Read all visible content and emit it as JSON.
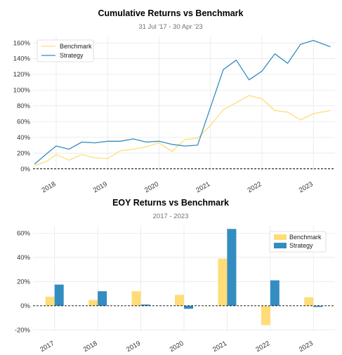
{
  "colors": {
    "benchmark": "#fedd78",
    "strategy": "#348dc1",
    "grid": "#e8e8e8",
    "zero_line": "#000000"
  },
  "chart_data": [
    {
      "type": "line",
      "title": "Cumulative Returns vs Benchmark",
      "subtitle": "31 Jul '17 - 30 Apr '23",
      "xlabel": "",
      "ylabel": "",
      "x_ticks": [
        "2018",
        "2019",
        "2020",
        "2021",
        "2022",
        "2023"
      ],
      "y_ticks": [
        "0%",
        "20%",
        "40%",
        "60%",
        "80%",
        "100%",
        "120%",
        "140%",
        "160%"
      ],
      "ylim": [
        -3,
        168
      ],
      "xlim": [
        2017.55,
        2023.42
      ],
      "grid": true,
      "legend": "top-left",
      "series": [
        {
          "name": "Benchmark",
          "x": [
            2017.58,
            2017.83,
            2018.0,
            2018.25,
            2018.5,
            2018.75,
            2019.0,
            2019.25,
            2019.5,
            2019.75,
            2020.0,
            2020.25,
            2020.5,
            2020.75,
            2021.0,
            2021.25,
            2021.5,
            2021.75,
            2022.0,
            2022.25,
            2022.5,
            2022.75,
            2023.0,
            2023.33
          ],
          "y": [
            4,
            10,
            18,
            11,
            18,
            14,
            13,
            23,
            25,
            28,
            33,
            22,
            37,
            39,
            55,
            75,
            84,
            93,
            89,
            74,
            72,
            62,
            70,
            74
          ]
        },
        {
          "name": "Strategy",
          "x": [
            2017.58,
            2017.83,
            2018.0,
            2018.25,
            2018.5,
            2018.75,
            2019.0,
            2019.25,
            2019.5,
            2019.75,
            2020.0,
            2020.25,
            2020.5,
            2020.75,
            2021.0,
            2021.25,
            2021.5,
            2021.75,
            2022.0,
            2022.25,
            2022.5,
            2022.75,
            2023.0,
            2023.33
          ],
          "y": [
            6,
            20,
            29,
            25,
            34,
            33,
            35,
            35,
            38,
            34,
            35,
            31,
            29,
            30,
            78,
            126,
            138,
            113,
            124,
            146,
            134,
            158,
            163,
            155
          ]
        }
      ]
    },
    {
      "type": "bar",
      "title": "EOY Returns  vs Benchmark",
      "subtitle": "2017 - 2023",
      "xlabel": "",
      "ylabel": "",
      "categories": [
        "2017",
        "2018",
        "2019",
        "2020",
        "2021",
        "2022",
        "2023"
      ],
      "y_ticks": [
        "-20%",
        "0%",
        "20%",
        "40%",
        "60%"
      ],
      "ylim": [
        -21,
        66
      ],
      "grid": true,
      "legend": "top-right",
      "series": [
        {
          "name": "Benchmark",
          "values": [
            7.5,
            4.8,
            12,
            9,
            39,
            -16,
            7
          ]
        },
        {
          "name": "Strategy",
          "values": [
            17.5,
            12,
            1,
            -2.5,
            63.5,
            21,
            -1
          ]
        }
      ]
    }
  ]
}
